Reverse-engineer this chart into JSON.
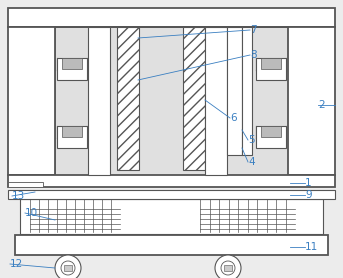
{
  "fig_width": 3.43,
  "fig_height": 2.78,
  "dpi": 100,
  "bg_color": "#ececec",
  "line_color": "#555555",
  "label_color": "#3a7fc1",
  "lw": 0.8,
  "tlw": 1.3
}
